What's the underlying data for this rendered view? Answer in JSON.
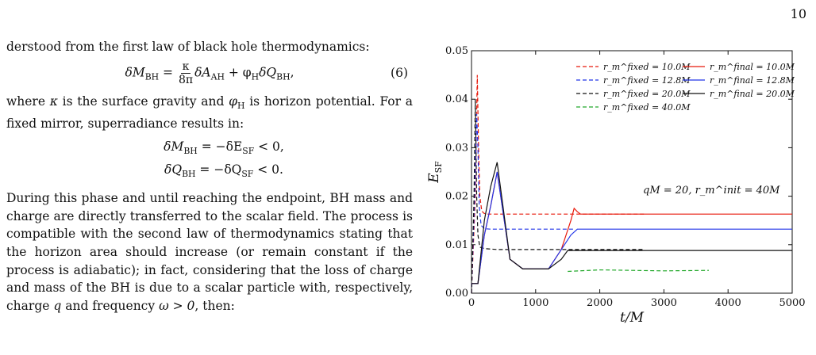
{
  "page_number": "10",
  "paragraphs": {
    "p1": "derstood from the first law of black hole thermodynamics:",
    "p2a": "where ",
    "p2b": " is the surface gravity and ",
    "p2c": " is horizon potential. For a fixed mirror, superradiance results in:",
    "p3": "During this phase and until reaching the endpoint, BH mass and charge are directly transferred to the scalar field. The process is compatible with the second law of thermodynamics stating that the horizon area should increase (or remain constant if the process is adiabatic); in fact, considering that the loss of charge and mass of the BH is due to a scalar particle with, respectively, charge",
    "p4": "and frequency ",
    "p4b": ", then:"
  },
  "equations": {
    "eq6_lhs": "δM",
    "eq6_sub": "BH",
    "eq6_eq": " = ",
    "eq6_frac_num": "κ",
    "eq6_frac_den": "8π",
    "eq6_rest_a": "δA",
    "eq6_rest_a_sub": "AH",
    "eq6_rest_b": " + φ",
    "eq6_rest_b_sub": "H",
    "eq6_rest_c": "δQ",
    "eq6_rest_c_sub": "BH",
    "eq6_tail": ",",
    "eq6_number": "(6)",
    "kappa": "κ",
    "phi_h": "φ",
    "phi_h_sub": "H",
    "eq_m_a": "δM",
    "eq_m_sub": "BH",
    "eq_m_b": " = −δE",
    "eq_m_sub2": "SF",
    "eq_m_c": " < 0,",
    "eq_q_a": "δQ",
    "eq_q_sub": "BH",
    "eq_q_b": " = −δQ",
    "eq_q_sub2": "SF",
    "eq_q_c": " < 0.",
    "q_symbol": "q",
    "omega_cond": "ω > 0"
  },
  "chart_data": {
    "type": "line",
    "xlabel": "t/M",
    "ylabel": "E",
    "ylabel_sub": "SF",
    "xlim": [
      0,
      5000
    ],
    "ylim": [
      0,
      0.05
    ],
    "xticks": [
      0,
      1000,
      2000,
      3000,
      4000,
      5000
    ],
    "yticks": [
      0.0,
      0.01,
      0.02,
      0.03,
      0.04,
      0.05
    ],
    "ytick_labels": [
      "0.00",
      "0.01",
      "0.02",
      "0.03",
      "0.04",
      "0.05"
    ],
    "annotation": "qM = 20, r_m^init = 40M",
    "legend_placement": "top-right",
    "series": [
      {
        "name": "r_m^fixed = 10.0M",
        "style": "dashed",
        "color": "#e8190b",
        "x": [
          0,
          60,
          90,
          110,
          130,
          160,
          190,
          230,
          280,
          350,
          450,
          700,
          1000,
          2700
        ],
        "y": [
          0.0,
          0.02,
          0.045,
          0.03,
          0.02,
          0.017,
          0.0165,
          0.0163,
          0.0163,
          0.0163,
          0.0163,
          0.0163,
          0.0163,
          0.0163
        ]
      },
      {
        "name": "r_m^fixed = 12.8M",
        "style": "dashed",
        "color": "#2235e8",
        "x": [
          0,
          50,
          80,
          100,
          120,
          150,
          200,
          300,
          600,
          1000,
          1600
        ],
        "y": [
          0.0,
          0.02,
          0.037,
          0.03,
          0.018,
          0.014,
          0.0133,
          0.0132,
          0.0132,
          0.0132,
          0.0132
        ]
      },
      {
        "name": "r_m^fixed = 20.0M",
        "style": "dashed",
        "color": "#111111",
        "x": [
          0,
          40,
          60,
          80,
          100,
          130,
          200,
          400,
          800,
          1500,
          2700
        ],
        "y": [
          0.0,
          0.02,
          0.04,
          0.02,
          0.012,
          0.0095,
          0.0092,
          0.009,
          0.009,
          0.009,
          0.009
        ]
      },
      {
        "name": "r_m^fixed = 40.0M",
        "style": "dashed",
        "color": "#22a82a",
        "x": [
          1500,
          2000,
          2500,
          3000,
          3700
        ],
        "y": [
          0.0045,
          0.0048,
          0.0047,
          0.0046,
          0.0047
        ]
      },
      {
        "name": "r_m^final = 10.0M",
        "style": "solid",
        "color": "#e8190b",
        "x": [
          0,
          100,
          200,
          300,
          400,
          600,
          800,
          1000,
          1200,
          1400,
          1550,
          1600,
          1650,
          1700,
          2000,
          3000,
          4000,
          5000
        ],
        "y": [
          0.002,
          0.002,
          0.012,
          0.018,
          0.025,
          0.007,
          0.005,
          0.005,
          0.005,
          0.009,
          0.015,
          0.0175,
          0.0168,
          0.0163,
          0.0163,
          0.0163,
          0.0163,
          0.0163
        ]
      },
      {
        "name": "r_m^final = 12.8M",
        "style": "solid",
        "color": "#2235e8",
        "x": [
          0,
          100,
          200,
          300,
          400,
          600,
          800,
          1000,
          1200,
          1400,
          1550,
          1650,
          1800,
          2000,
          3000,
          4000,
          5000
        ],
        "y": [
          0.002,
          0.002,
          0.012,
          0.018,
          0.025,
          0.007,
          0.005,
          0.005,
          0.005,
          0.009,
          0.012,
          0.0132,
          0.0132,
          0.0132,
          0.0132,
          0.0132,
          0.0132
        ]
      },
      {
        "name": "r_m^final = 20.0M",
        "style": "solid",
        "color": "#111111",
        "x": [
          0,
          100,
          200,
          300,
          400,
          600,
          800,
          1000,
          1200,
          1400,
          1500,
          1700,
          2000,
          3000,
          4000,
          5000
        ],
        "y": [
          0.002,
          0.002,
          0.015,
          0.022,
          0.027,
          0.007,
          0.005,
          0.005,
          0.005,
          0.007,
          0.0088,
          0.0088,
          0.0088,
          0.0088,
          0.0088,
          0.0088
        ]
      }
    ],
    "grid": false
  }
}
